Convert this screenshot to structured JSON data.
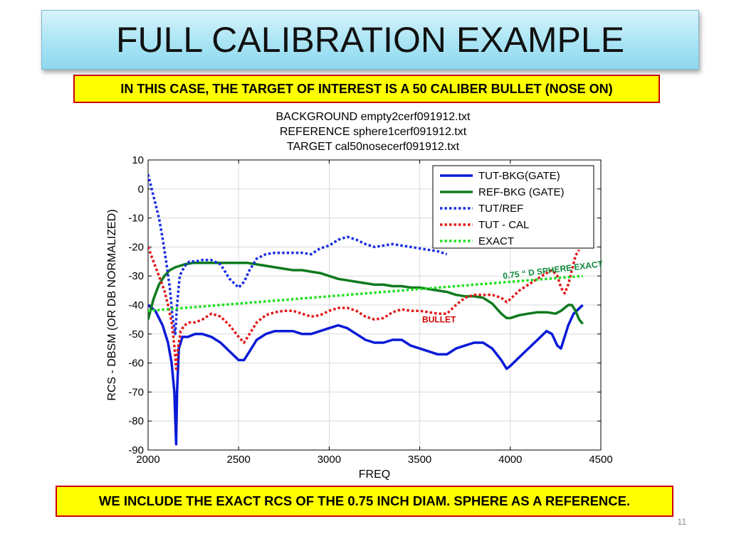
{
  "slide": {
    "title": "FULL CALIBRATION EXAMPLE",
    "top_callout": "IN THIS CASE, THE TARGET OF INTEREST IS A 50 CALIBER BULLET (NOSE ON)",
    "bottom_callout": "WE INCLUDE THE EXACT RCS OF THE 0.75 INCH DIAM. SPHERE AS A REFERENCE.",
    "page_number": "11"
  },
  "colors": {
    "tut_bkg": "#0a1ad6",
    "ref_bkg": "#0f7a1e",
    "tut_ref": "#1a2fe0",
    "tut_cal": "#e01a1a",
    "exact": "#22e022",
    "annotation_sphere": "#0f8a3a",
    "annotation_bullet": "#cc0000"
  },
  "chart_data": {
    "type": "line",
    "title_lines": [
      "BACKGROUND empty2cerf091912.txt",
      "REFERENCE sphere1cerf091912.txt",
      "TARGET cal50nosecerf091912.txt"
    ],
    "xlabel": "FREQ",
    "ylabel": "RCS - DBSM (OR DB NORMALIZED)",
    "xlim": [
      2000,
      4500
    ],
    "ylim": [
      -90,
      10
    ],
    "xticks": [
      2000,
      2500,
      3000,
      3500,
      4000,
      4500
    ],
    "yticks": [
      10,
      0,
      -10,
      -20,
      -30,
      -40,
      -50,
      -60,
      -70,
      -80,
      -90
    ],
    "grid": true,
    "legend_position": "top-right",
    "annotations": [
      {
        "text": "0.75 “ D SPHERE EXACT",
        "x": 3450,
        "y": -31
      },
      {
        "text": "BULLET",
        "x": 3600,
        "y": -46
      }
    ],
    "series": [
      {
        "name": "TUT-BKG(GATE)",
        "style": "solid",
        "color_key": "tut_bkg",
        "x": [
          2000,
          2040,
          2080,
          2110,
          2130,
          2145,
          2155,
          2160,
          2170,
          2190,
          2220,
          2260,
          2300,
          2350,
          2400,
          2450,
          2500,
          2530,
          2560,
          2600,
          2650,
          2700,
          2750,
          2800,
          2850,
          2900,
          2950,
          3000,
          3050,
          3100,
          3150,
          3200,
          3250,
          3300,
          3350,
          3400,
          3450,
          3500,
          3550,
          3600,
          3650,
          3700,
          3750,
          3800,
          3850,
          3900,
          3950,
          3980,
          4000,
          4050,
          4100,
          4150,
          4200,
          4230,
          4260,
          4280,
          4300,
          4320,
          4350,
          4400
        ],
        "y": [
          -40,
          -42,
          -47,
          -53,
          -60,
          -70,
          -88,
          -70,
          -55,
          -51,
          -51,
          -50,
          -50,
          -51,
          -53,
          -56,
          -59,
          -59,
          -56,
          -52,
          -50,
          -49,
          -49,
          -49,
          -50,
          -50,
          -49,
          -48,
          -47,
          -48,
          -50,
          -52,
          -53,
          -53,
          -52,
          -52,
          -54,
          -55,
          -56,
          -57,
          -57,
          -55,
          -54,
          -53,
          -53,
          -55,
          -59,
          -62,
          -61,
          -58,
          -55,
          -52,
          -49,
          -50,
          -54,
          -55,
          -51,
          -47,
          -43,
          -40
        ]
      },
      {
        "name": "REF-BKG (GATE)",
        "style": "solid",
        "color_key": "ref_bkg",
        "x": [
          2000,
          2030,
          2060,
          2090,
          2120,
          2150,
          2200,
          2250,
          2300,
          2350,
          2400,
          2450,
          2500,
          2550,
          2600,
          2650,
          2700,
          2750,
          2800,
          2850,
          2900,
          2950,
          3000,
          3050,
          3100,
          3150,
          3200,
          3250,
          3300,
          3350,
          3400,
          3450,
          3500,
          3550,
          3600,
          3650,
          3700,
          3750,
          3800,
          3850,
          3900,
          3950,
          3980,
          4000,
          4050,
          4100,
          4150,
          4200,
          4250,
          4280,
          4300,
          4320,
          4340,
          4360,
          4380,
          4400
        ],
        "y": [
          -45,
          -38,
          -33,
          -30,
          -28,
          -27,
          -26,
          -25.5,
          -25.5,
          -25.5,
          -25.5,
          -25.5,
          -25.5,
          -25.5,
          -26,
          -26.5,
          -27,
          -27.5,
          -28,
          -28,
          -28.5,
          -29,
          -30,
          -31,
          -31.5,
          -32,
          -32.5,
          -33,
          -33,
          -33.5,
          -33.5,
          -34,
          -34,
          -34.5,
          -35,
          -35.5,
          -36.5,
          -37,
          -37,
          -37.5,
          -39.5,
          -43,
          -44.5,
          -44.5,
          -43.5,
          -43,
          -42.5,
          -42.5,
          -43,
          -42,
          -41,
          -40,
          -40,
          -42,
          -45,
          -46.5
        ]
      },
      {
        "name": "TUT/REF",
        "style": "dotted",
        "color_key": "tut_ref",
        "x": [
          2000,
          2020,
          2040,
          2060,
          2080,
          2100,
          2120,
          2135,
          2150,
          2160,
          2175,
          2190,
          2210,
          2230,
          2260,
          2300,
          2350,
          2400,
          2450,
          2500,
          2530,
          2560,
          2600,
          2650,
          2700,
          2750,
          2800,
          2850,
          2900,
          2950,
          3000,
          3050,
          3100,
          3150,
          3200,
          3250,
          3300,
          3350,
          3400,
          3450,
          3500,
          3550,
          3600,
          3650
        ],
        "y": [
          5,
          0,
          -5,
          -10,
          -17,
          -25,
          -34,
          -44,
          -50,
          -40,
          -30,
          -28,
          -26,
          -25,
          -25,
          -24.5,
          -24.5,
          -26,
          -31,
          -34,
          -32,
          -28,
          -24,
          -22.5,
          -22,
          -22,
          -22,
          -22,
          -22.5,
          -20.5,
          -19.5,
          -17.5,
          -16.5,
          -17.5,
          -19,
          -20,
          -19.5,
          -19,
          -19.5,
          -20,
          -20.5,
          -21,
          -21.5,
          -22.5
        ]
      },
      {
        "name": "TUT - CAL",
        "style": "dotted",
        "color_key": "tut_cal",
        "x": [
          2000,
          2030,
          2060,
          2090,
          2110,
          2130,
          2145,
          2155,
          2165,
          2180,
          2200,
          2230,
          2260,
          2300,
          2350,
          2400,
          2450,
          2500,
          2530,
          2560,
          2600,
          2650,
          2700,
          2750,
          2800,
          2850,
          2900,
          2950,
          3000,
          3050,
          3100,
          3150,
          3200,
          3250,
          3300,
          3350,
          3400,
          3450,
          3500,
          3550,
          3600,
          3650,
          3700,
          3750,
          3800,
          3850,
          3900,
          3950,
          3980,
          4000,
          4050,
          4100,
          4150,
          4200,
          4230,
          4260,
          4280,
          4300,
          4320,
          4340,
          4360,
          4380
        ],
        "y": [
          -20,
          -25,
          -30,
          -35,
          -40,
          -46,
          -54,
          -62,
          -55,
          -49,
          -47,
          -46,
          -46,
          -45,
          -43,
          -44,
          -47,
          -51,
          -53,
          -50,
          -46,
          -43.5,
          -42.5,
          -42,
          -42,
          -43,
          -44,
          -43.5,
          -42,
          -41,
          -41,
          -42,
          -44,
          -45,
          -44.5,
          -42.5,
          -41.5,
          -42,
          -42,
          -42.5,
          -43,
          -43,
          -40,
          -37.5,
          -36.5,
          -36.5,
          -36.5,
          -37.5,
          -39,
          -38,
          -35,
          -33,
          -31,
          -29,
          -28,
          -30,
          -34,
          -36,
          -33,
          -28,
          -23,
          -21
        ]
      },
      {
        "name": "EXACT",
        "style": "dotted",
        "color_key": "exact",
        "x": [
          2000,
          4400
        ],
        "y": [
          -42,
          -30
        ]
      }
    ]
  }
}
